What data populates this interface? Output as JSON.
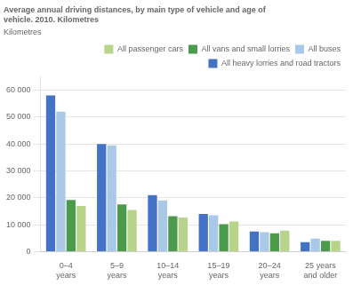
{
  "chart_data": {
    "type": "bar",
    "title": [
      "Average annual driving distances, by main type of vehicle and age of",
      "vehicle. 2010. Kilometres"
    ],
    "ylabel": "Kilometres",
    "categories": [
      "0–4\nyears",
      "5–9\nyears",
      "10–14\nyears",
      "15–19\nyears",
      "20–24\nyears",
      "25 years\nand older"
    ],
    "series": [
      {
        "name": "All heavy lorries and road tractors",
        "color": "#4472c4",
        "values": [
          58000,
          40000,
          21000,
          14000,
          7500,
          3500
        ]
      },
      {
        "name": "All buses",
        "color": "#aac8e8",
        "values": [
          52000,
          39500,
          19000,
          13500,
          7200,
          4800
        ]
      },
      {
        "name": "All vans and small lorries",
        "color": "#4c9b4c",
        "values": [
          19200,
          17500,
          13200,
          10200,
          6800,
          4000
        ]
      },
      {
        "name": "All passenger cars",
        "color": "#b8d48b",
        "values": [
          17000,
          15500,
          12700,
          11200,
          7800,
          4000
        ]
      }
    ],
    "ylim": [
      0,
      65000
    ],
    "yticks": [
      0,
      {
        "value": 10000,
        "label": "10 000"
      },
      {
        "value": 20000,
        "label": "20 000"
      },
      {
        "value": 30000,
        "label": "30 000"
      },
      {
        "value": 40000,
        "label": "40 000"
      },
      {
        "value": 50000,
        "label": "50 000"
      },
      {
        "value": 60000,
        "label": "60 000"
      }
    ],
    "grid": true,
    "legend": "upper right"
  }
}
